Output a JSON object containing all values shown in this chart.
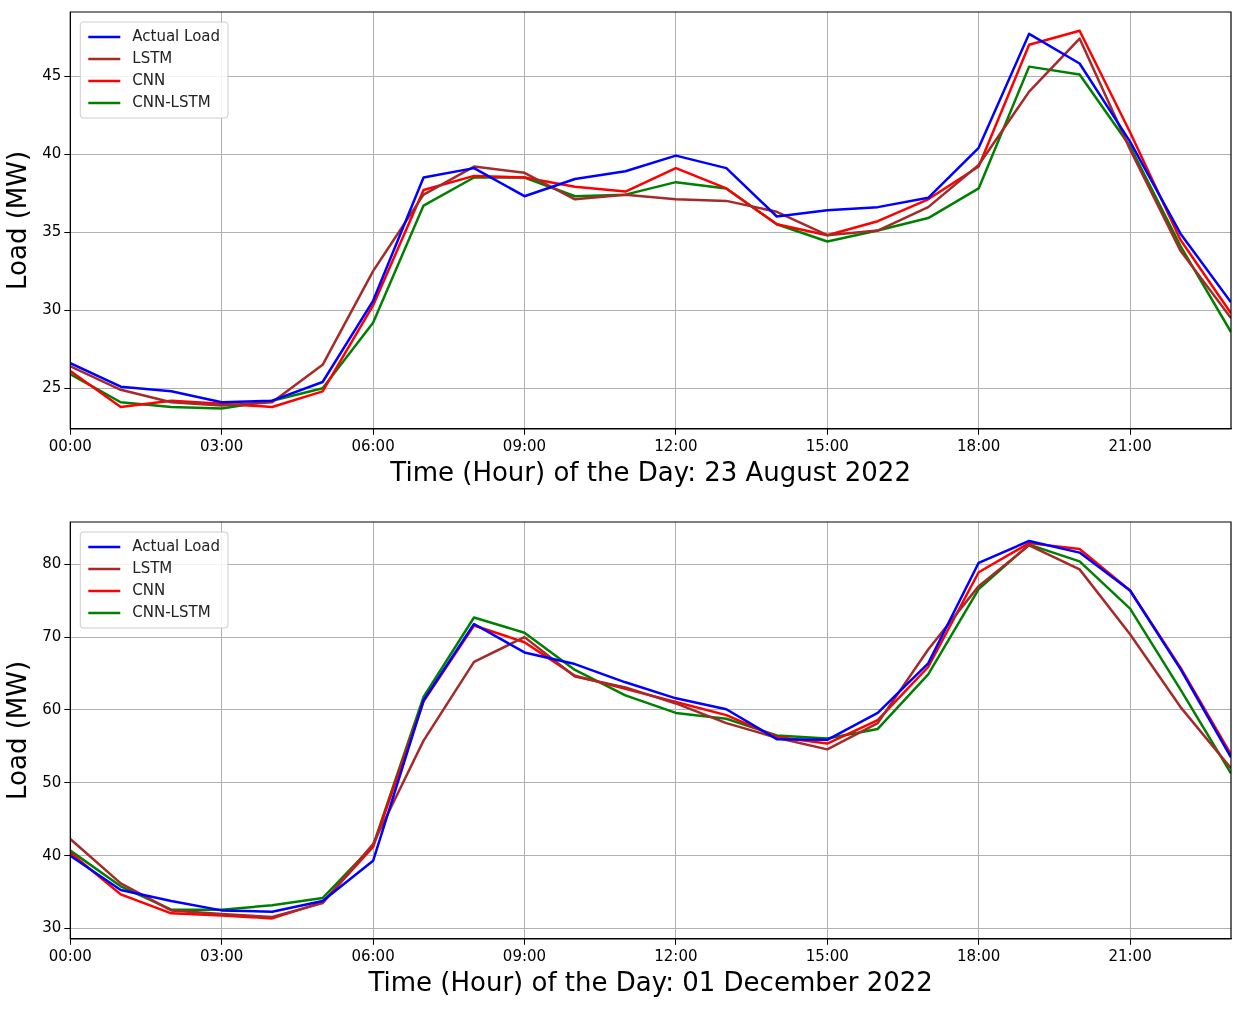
{
  "chart_data": [
    {
      "type": "line",
      "xlabel": "Time (Hour) of the Day: 23 August 2022",
      "ylabel": "Load (MW)",
      "x": [
        0,
        1,
        2,
        3,
        4,
        5,
        6,
        7,
        8,
        9,
        10,
        11,
        12,
        13,
        14,
        15,
        16,
        17,
        18,
        19,
        20,
        21,
        22,
        23
      ],
      "xlim": [
        0,
        23
      ],
      "xticks": [
        {
          "value": 0,
          "label": "00:00"
        },
        {
          "value": 3,
          "label": "03:00"
        },
        {
          "value": 6,
          "label": "06:00"
        },
        {
          "value": 9,
          "label": "09:00"
        },
        {
          "value": 12,
          "label": "12:00"
        },
        {
          "value": 15,
          "label": "15:00"
        },
        {
          "value": 18,
          "label": "18:00"
        },
        {
          "value": 21,
          "label": "21:00"
        }
      ],
      "ylim": [
        22.4,
        49.1
      ],
      "yticks": [
        25,
        30,
        35,
        40,
        45
      ],
      "grid": true,
      "legend": "top left",
      "marker": "none",
      "line_style": "solid",
      "series": [
        {
          "name": "Actual Load",
          "color": "#0000ff",
          "values": [
            26.6,
            25.1,
            24.8,
            24.1,
            24.2,
            25.4,
            30.6,
            38.5,
            39.1,
            37.3,
            38.4,
            38.9,
            39.9,
            39.1,
            36.0,
            36.4,
            36.6,
            37.2,
            40.4,
            47.7,
            45.8,
            40.8,
            34.9,
            30.5
          ]
        },
        {
          "name": "LSTM",
          "color": "#a52a2a",
          "values": [
            26.4,
            24.9,
            24.1,
            23.9,
            24.1,
            26.5,
            32.5,
            37.4,
            39.2,
            38.8,
            37.1,
            37.4,
            37.1,
            37.0,
            36.3,
            34.8,
            35.1,
            36.6,
            39.3,
            44.0,
            47.4,
            40.3,
            33.8,
            29.5
          ]
        },
        {
          "name": "CNN",
          "color": "#ff0000",
          "values": [
            26.1,
            23.8,
            24.2,
            24.0,
            23.8,
            24.8,
            30.3,
            37.7,
            38.6,
            38.5,
            37.9,
            37.6,
            39.1,
            37.8,
            35.5,
            34.8,
            35.7,
            37.1,
            39.2,
            47.0,
            47.9,
            41.4,
            34.5,
            29.8
          ]
        },
        {
          "name": "CNN-LSTM",
          "color": "#008000",
          "values": [
            25.9,
            24.1,
            23.8,
            23.7,
            24.2,
            25.0,
            29.2,
            36.7,
            38.5,
            38.5,
            37.3,
            37.4,
            38.2,
            37.8,
            35.5,
            34.4,
            35.1,
            35.9,
            37.8,
            45.6,
            45.1,
            40.5,
            34.1,
            28.6
          ]
        }
      ]
    },
    {
      "type": "line",
      "xlabel": "Time (Hour) of the Day: 01 December 2022",
      "ylabel": "Load (MW)",
      "x": [
        0,
        1,
        2,
        3,
        4,
        5,
        6,
        7,
        8,
        9,
        10,
        11,
        12,
        13,
        14,
        15,
        16,
        17,
        18,
        19,
        20,
        21,
        22,
        23
      ],
      "xlim": [
        0,
        23
      ],
      "xticks": [
        {
          "value": 0,
          "label": "00:00"
        },
        {
          "value": 3,
          "label": "03:00"
        },
        {
          "value": 6,
          "label": "06:00"
        },
        {
          "value": 9,
          "label": "09:00"
        },
        {
          "value": 12,
          "label": "12:00"
        },
        {
          "value": 15,
          "label": "15:00"
        },
        {
          "value": 18,
          "label": "18:00"
        },
        {
          "value": 21,
          "label": "21:00"
        }
      ],
      "ylim": [
        28.6,
        85.8
      ],
      "yticks": [
        30,
        40,
        50,
        60,
        70,
        80
      ],
      "grid": true,
      "legend": "top left",
      "marker": "none",
      "line_style": "solid",
      "series": [
        {
          "name": "Actual Load",
          "color": "#0000ff",
          "values": [
            40.0,
            35.3,
            33.8,
            32.5,
            32.3,
            33.8,
            39.3,
            61.3,
            71.8,
            67.9,
            66.3,
            63.8,
            61.6,
            60.1,
            56.0,
            55.9,
            59.6,
            66.4,
            80.2,
            83.2,
            81.6,
            76.4,
            65.6,
            53.5
          ]
        },
        {
          "name": "LSTM",
          "color": "#a52a2a",
          "values": [
            42.3,
            36.2,
            32.5,
            32.0,
            31.6,
            33.5,
            41.6,
            55.8,
            66.6,
            70.0,
            64.6,
            63.1,
            60.9,
            58.2,
            56.2,
            54.6,
            58.2,
            68.3,
            77.0,
            82.6,
            79.3,
            70.4,
            60.4,
            52.0
          ]
        },
        {
          "name": "CNN",
          "color": "#ff0000",
          "values": [
            40.4,
            34.7,
            32.1,
            31.8,
            31.4,
            33.6,
            41.2,
            61.2,
            71.6,
            69.3,
            64.7,
            62.9,
            61.1,
            59.3,
            56.3,
            55.4,
            58.6,
            65.9,
            78.9,
            82.9,
            82.1,
            76.4,
            65.8,
            53.9
          ]
        },
        {
          "name": "CNN-LSTM",
          "color": "#008000",
          "values": [
            40.7,
            35.8,
            32.6,
            32.6,
            33.2,
            34.2,
            41.4,
            61.8,
            72.7,
            70.6,
            65.5,
            62.0,
            59.6,
            58.8,
            56.5,
            56.1,
            57.4,
            64.9,
            76.6,
            82.7,
            80.4,
            73.9,
            62.8,
            51.3
          ]
        }
      ]
    }
  ]
}
